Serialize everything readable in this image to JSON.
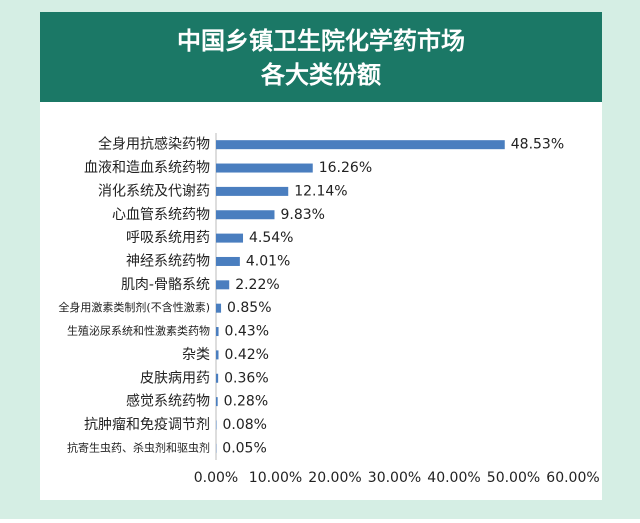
{
  "chart_data": {
    "type": "bar",
    "orientation": "horizontal",
    "title": [
      "中国乡镇卫生院化学药市场",
      "各大类份额"
    ],
    "categories": [
      "全身用抗感染药物",
      "血液和造血系统药物",
      "消化系统及代谢药",
      "心血管系统药物",
      "呼吸系统用药",
      "神经系统药物",
      "肌肉-骨骼系统",
      "全身用激素类制剂(不含性激素)",
      "生殖泌尿系统和性激素类药物",
      "杂类",
      "皮肤病用药",
      "感觉系统药物",
      "抗肿瘤和免疫调节剂",
      "抗寄生虫药、杀虫剂和驱虫剂"
    ],
    "values": [
      48.53,
      16.26,
      12.14,
      9.83,
      4.54,
      4.01,
      2.22,
      0.85,
      0.43,
      0.42,
      0.36,
      0.28,
      0.08,
      0.05
    ],
    "value_labels": [
      "48.53%",
      "16.26%",
      "12.14%",
      "9.83%",
      "4.54%",
      "4.01%",
      "2.22%",
      "0.85%",
      "0.43%",
      "0.42%",
      "0.36%",
      "0.28%",
      "0.08%",
      "0.05%"
    ],
    "color": "#4a7ebf",
    "xlim": [
      0,
      60
    ],
    "xticks": [
      {
        "value": 0,
        "label": "0.00%"
      },
      {
        "value": 10,
        "label": "10.00%"
      },
      {
        "value": 20,
        "label": "20.00%"
      },
      {
        "value": 30,
        "label": "30.00%"
      },
      {
        "value": 40,
        "label": "40.00%"
      },
      {
        "value": 50,
        "label": "50.00%"
      },
      {
        "value": 60,
        "label": "60.00%"
      }
    ],
    "grid": false
  }
}
